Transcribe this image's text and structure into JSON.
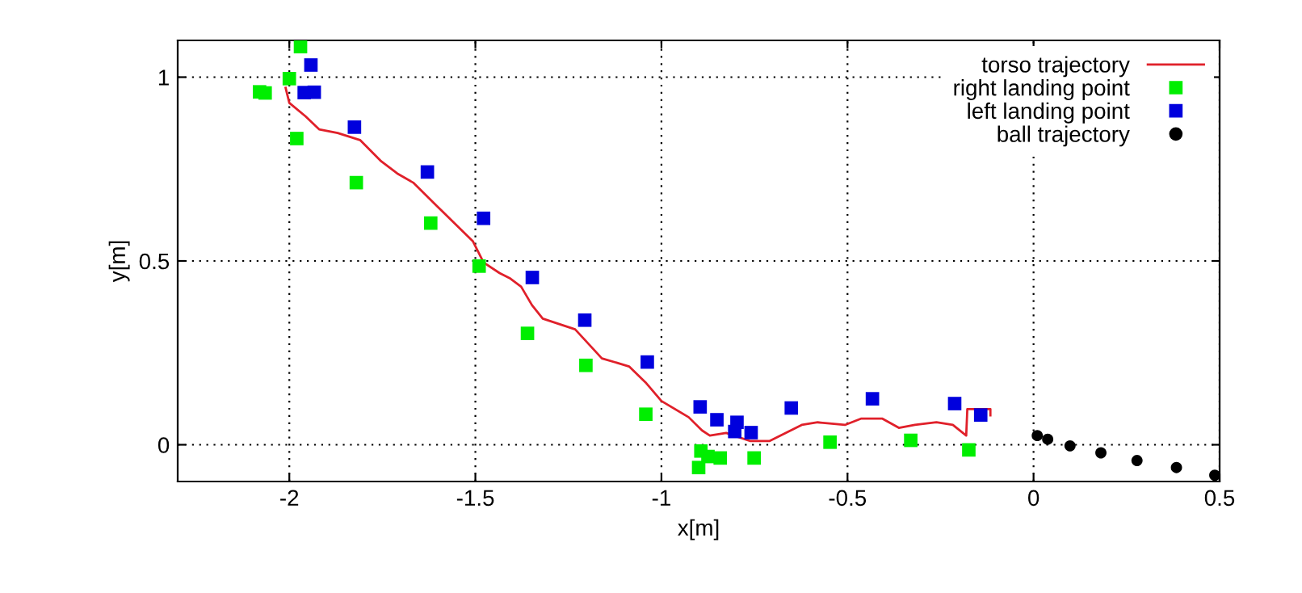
{
  "chart_data": {
    "type": "scatter",
    "xlabel": "x[m]",
    "ylabel": "y[m]",
    "xlim": [
      -2.3,
      0.5
    ],
    "ylim": [
      -0.1,
      1.1
    ],
    "xticks": [
      -2,
      -1.5,
      -1,
      -0.5,
      0,
      0.5
    ],
    "yticks": [
      0,
      0.5,
      1
    ],
    "grid": true,
    "legend": "top right",
    "series": [
      {
        "name": "torso trajectory",
        "type": "line",
        "color": "#e0202a",
        "marker": "none",
        "line_style": "solid",
        "x": [
          -2.01,
          -2.0,
          -1.957,
          -1.92,
          -1.87,
          -1.81,
          -1.753,
          -1.71,
          -1.667,
          -1.594,
          -1.507,
          -1.478,
          -1.435,
          -1.406,
          -1.377,
          -1.348,
          -1.319,
          -1.232,
          -1.16,
          -1.087,
          -1.043,
          -1.0,
          -0.927,
          -0.891,
          -0.87,
          -0.826,
          -0.761,
          -0.71,
          -0.623,
          -0.58,
          -0.507,
          -0.464,
          -0.406,
          -0.362,
          -0.319,
          -0.261,
          -0.217,
          -0.181,
          -0.178,
          -0.116,
          -0.116
        ],
        "values": [
          0.971,
          0.93,
          0.894,
          0.858,
          0.848,
          0.829,
          0.771,
          0.738,
          0.713,
          0.64,
          0.554,
          0.496,
          0.467,
          0.452,
          0.43,
          0.38,
          0.343,
          0.314,
          0.235,
          0.213,
          0.17,
          0.119,
          0.075,
          0.039,
          0.025,
          0.032,
          0.01,
          0.01,
          0.054,
          0.061,
          0.054,
          0.071,
          0.071,
          0.046,
          0.054,
          0.061,
          0.054,
          0.025,
          0.097,
          0.097,
          0.08
        ]
      },
      {
        "name": "right landing point",
        "color": "#00ee00",
        "marker": "square",
        "x": [
          -2.08,
          -2.065,
          -2.0,
          -1.97,
          -1.98,
          -1.82,
          -1.62,
          -1.49,
          -1.36,
          -1.203,
          -1.042,
          -0.894,
          -0.875,
          -0.842,
          -0.9,
          -0.751,
          -0.547,
          -0.33,
          -0.174
        ],
        "values": [
          0.96,
          0.957,
          0.996,
          1.083,
          0.833,
          0.713,
          0.603,
          0.486,
          0.303,
          0.216,
          0.083,
          -0.017,
          -0.032,
          -0.036,
          -0.062,
          -0.036,
          0.007,
          0.012,
          -0.014
        ]
      },
      {
        "name": "left landing point",
        "color": "#0000dd",
        "marker": "square",
        "x": [
          -1.942,
          -1.96,
          -1.933,
          -1.825,
          -1.629,
          -1.478,
          -1.347,
          -1.206,
          -1.038,
          -0.896,
          -0.851,
          -0.797,
          -0.803,
          -0.759,
          -0.651,
          -0.433,
          -0.212,
          -0.142
        ],
        "values": [
          1.033,
          0.958,
          0.959,
          0.864,
          0.742,
          0.616,
          0.455,
          0.339,
          0.225,
          0.103,
          0.068,
          0.061,
          0.036,
          0.033,
          0.1,
          0.125,
          0.112,
          0.081
        ]
      },
      {
        "name": "ball trajectory",
        "color": "#000000",
        "marker": "circle",
        "x": [
          0.01,
          0.038,
          0.098,
          0.181,
          0.278,
          0.384,
          0.487
        ],
        "values": [
          0.025,
          0.015,
          -0.003,
          -0.022,
          -0.043,
          -0.062,
          -0.083
        ]
      }
    ]
  }
}
